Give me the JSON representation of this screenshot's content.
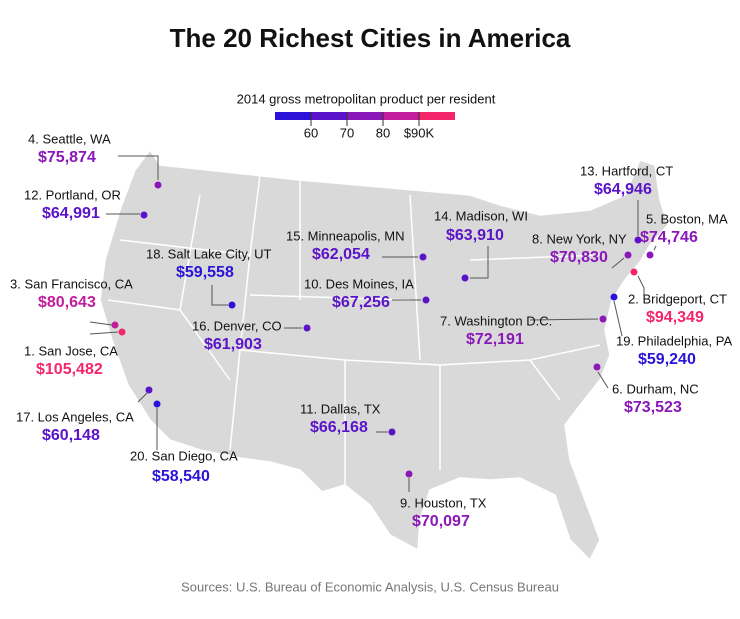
{
  "title": "The 20 Richest Cities in America",
  "legend": {
    "title": "2014 gross metropolitan product per resident",
    "range": [
      50000,
      100000
    ],
    "colors": [
      "#2b12d9",
      "#5a13c9",
      "#8a17b8",
      "#c11d9c",
      "#f5256b"
    ],
    "ticks": [
      {
        "value": 60000,
        "label": "60"
      },
      {
        "value": 70000,
        "label": "70"
      },
      {
        "value": 80000,
        "label": "80"
      },
      {
        "value": 90000,
        "label": "$90K"
      }
    ]
  },
  "cities": [
    {
      "label": "4. Seattle, WA",
      "value": 75874,
      "value_label": "$75,874"
    },
    {
      "label": "12. Portland, OR",
      "value": 64991,
      "value_label": "$64,991"
    },
    {
      "label": "3. San Francisco, CA",
      "value": 80643,
      "value_label": "$80,643"
    },
    {
      "label": "1. San Jose, CA",
      "value": 105482,
      "value_label": "$105,482"
    },
    {
      "label": "17. Los Angeles, CA",
      "value": 60148,
      "value_label": "$60,148"
    },
    {
      "label": "20. San Diego, CA",
      "value": 58540,
      "value_label": "$58,540"
    },
    {
      "label": "18. Salt Lake City, UT",
      "value": 59558,
      "value_label": "$59,558"
    },
    {
      "label": "16. Denver, CO",
      "value": 61903,
      "value_label": "$61,903"
    },
    {
      "label": "15. Minneapolis, MN",
      "value": 62054,
      "value_label": "$62,054"
    },
    {
      "label": "10. Des Moines, IA",
      "value": 67256,
      "value_label": "$67,256"
    },
    {
      "label": "11. Dallas, TX",
      "value": 66168,
      "value_label": "$66,168"
    },
    {
      "label": "9. Houston, TX",
      "value": 70097,
      "value_label": "$70,097"
    },
    {
      "label": "14. Madison, WI",
      "value": 63910,
      "value_label": "$63,910"
    },
    {
      "label": "7. Washington D.C.",
      "value": 72191,
      "value_label": "$72,191"
    },
    {
      "label": "8. New York, NY",
      "value": 70830,
      "value_label": "$70,830"
    },
    {
      "label": "13. Hartford, CT",
      "value": 64946,
      "value_label": "$64,946"
    },
    {
      "label": "5. Boston, MA",
      "value": 74746,
      "value_label": "$74,746"
    },
    {
      "label": "2. Bridgeport, CT",
      "value": 94349,
      "value_label": "$94,349"
    },
    {
      "label": "19. Philadelphia, PA",
      "value": 59240,
      "value_label": "$59,240"
    },
    {
      "label": "6. Durham, NC",
      "value": 73523,
      "value_label": "$73,523"
    }
  ],
  "source": "Sources: U.S. Bureau of Economic Analysis, U.S. Census Bureau"
}
